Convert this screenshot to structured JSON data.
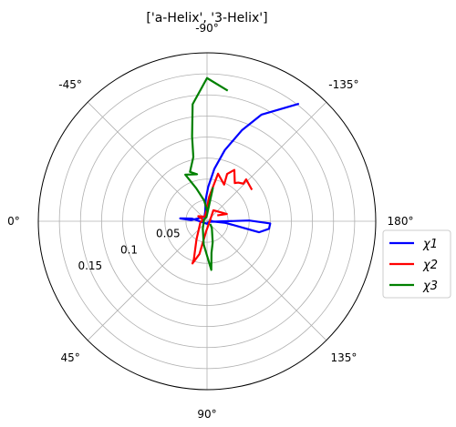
{
  "chart_data": {
    "type": "line",
    "projection": "polar",
    "title": "['a-Helix', '3-Helix']",
    "angle_tick_labels": [
      "0°",
      "45°",
      "90°",
      "135°",
      "180°",
      "-135°",
      "-90°",
      "-45°"
    ],
    "radial_tick_labels": [
      "0.05",
      "0.1",
      "0.15"
    ],
    "radial_range": [
      0,
      0.2
    ],
    "grid": true,
    "legend_position": "right",
    "series": [
      {
        "name": "χ1",
        "color": "#0000ff",
        "points": [
          [
            -128,
            0.177
          ],
          [
            -117,
            0.142
          ],
          [
            -111,
            0.116
          ],
          [
            -104,
            0.087
          ],
          [
            -98,
            0.063
          ],
          [
            -92,
            0.041
          ],
          [
            -86,
            0.025
          ],
          [
            -80,
            0.012
          ],
          [
            -60,
            0.006
          ],
          [
            -4,
            0.019
          ],
          [
            -6,
            0.032
          ],
          [
            -10,
            0.018
          ],
          [
            90,
            0.003
          ],
          [
            160,
            0.002
          ],
          [
            181,
            0.05
          ],
          [
            178,
            0.075
          ],
          [
            173,
            0.074
          ],
          [
            168,
            0.063
          ],
          [
            175,
            0.022
          ],
          [
            178,
            0.007
          ],
          [
            -170,
            0.004
          ]
        ]
      },
      {
        "name": "χ2",
        "color": "#ff0000",
        "points": [
          [
            -145,
            0.065
          ],
          [
            -133,
            0.068
          ],
          [
            -134,
            0.062
          ],
          [
            -129,
            0.059
          ],
          [
            -126,
            0.056
          ],
          [
            -118,
            0.069
          ],
          [
            -113,
            0.061
          ],
          [
            -115,
            0.048
          ],
          [
            -103,
            0.058
          ],
          [
            -95,
            0.029
          ],
          [
            -85,
            0.011
          ],
          [
            -65,
            0.006
          ],
          [
            -30,
            0.012
          ],
          [
            -20,
            0.005
          ],
          [
            10,
            0.008
          ],
          [
            60,
            0.025
          ],
          [
            71,
            0.048
          ],
          [
            71,
            0.053
          ],
          [
            77,
            0.04
          ],
          [
            85,
            0.012
          ],
          [
            120,
            0.004
          ],
          [
            -120,
            0.015
          ],
          [
            -160,
            0.025
          ],
          [
            -150,
            0.014
          ]
        ]
      },
      {
        "name": "χ3",
        "color": "#008000",
        "points": [
          [
            -99,
            0.157
          ],
          [
            -90,
            0.17
          ],
          [
            -83,
            0.14
          ],
          [
            -80,
            0.102
          ],
          [
            -78,
            0.078
          ],
          [
            -71,
            0.062
          ],
          [
            -78,
            0.057
          ],
          [
            -65,
            0.061
          ],
          [
            -72,
            0.041
          ],
          [
            -82,
            0.025
          ],
          [
            -93,
            0.011
          ],
          [
            -100,
            0.04
          ],
          [
            -83,
            0.005
          ],
          [
            -30,
            0.004
          ],
          [
            60,
            0.01
          ],
          [
            82,
            0.028
          ],
          [
            95,
            0.058
          ],
          [
            98,
            0.038
          ],
          [
            105,
            0.026
          ],
          [
            125,
            0.01
          ],
          [
            140,
            0.005
          ]
        ]
      }
    ]
  }
}
